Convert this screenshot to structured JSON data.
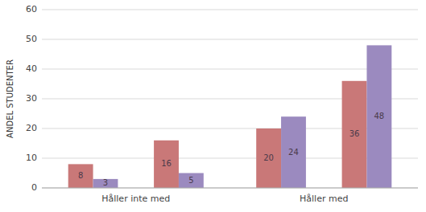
{
  "chart_data": {
    "type": "bar",
    "ylabel": "ANDEL STUDENTER",
    "categories": [
      "Håller inte med",
      "Håller med"
    ],
    "series": [
      {
        "color": "#C97878",
        "values": [
          8,
          20
        ]
      },
      {
        "color": "#9B8ABF",
        "values": [
          3,
          24
        ]
      },
      {
        "color": "#C97878",
        "values": [
          16,
          36
        ]
      },
      {
        "color": "#9B8ABF",
        "values": [
          5,
          48
        ]
      }
    ],
    "ylim": [
      0,
      60
    ],
    "yticks": [
      0,
      10,
      20,
      30,
      40,
      50,
      60
    ],
    "grid": true,
    "data_labels": true
  }
}
